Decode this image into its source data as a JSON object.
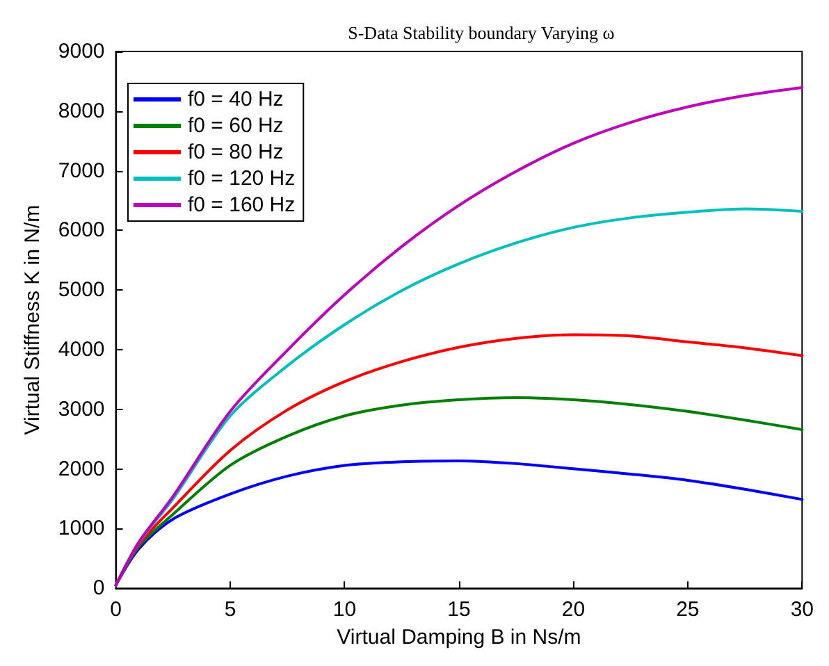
{
  "chart_data": {
    "type": "line",
    "title": "S-Data Stability boundary Varying ω",
    "xlabel": "Virtual Damping B in Ns/m",
    "ylabel": "Virtual Stiffness K in N/m",
    "x": [
      0,
      1,
      2.5,
      5,
      7.5,
      10,
      12.5,
      15,
      17.5,
      20,
      22.5,
      25,
      27.5,
      30
    ],
    "series": [
      {
        "name": "f0 = 40 Hz",
        "color": "#0000ff",
        "values": [
          50,
          660,
          1160,
          1580,
          1880,
          2060,
          2120,
          2135,
          2090,
          2005,
          1915,
          1810,
          1660,
          1490
        ]
      },
      {
        "name": "f0 = 60 Hz",
        "color": "#008000",
        "values": [
          50,
          700,
          1240,
          2060,
          2550,
          2890,
          3070,
          3160,
          3195,
          3160,
          3080,
          2965,
          2820,
          2660
        ]
      },
      {
        "name": "f0 = 80 Hz",
        "color": "#ff0000",
        "values": [
          50,
          730,
          1350,
          2310,
          2990,
          3465,
          3800,
          4040,
          4190,
          4250,
          4230,
          4130,
          4030,
          3900
        ]
      },
      {
        "name": "f0 = 120 Hz",
        "color": "#00bfbf",
        "values": [
          50,
          760,
          1500,
          2890,
          3730,
          4420,
          4990,
          5440,
          5790,
          6050,
          6210,
          6305,
          6360,
          6320
        ]
      },
      {
        "name": "f0 = 160 Hz",
        "color": "#bf00bf",
        "values": [
          50,
          770,
          1540,
          2965,
          3990,
          4920,
          5730,
          6420,
          6990,
          7460,
          7810,
          8070,
          8260,
          8395
        ]
      }
    ],
    "xlim": [
      0,
      30
    ],
    "xticks": [
      0,
      5,
      10,
      15,
      20,
      25,
      30
    ],
    "ylim": [
      0,
      9000
    ],
    "yticks": [
      0,
      1000,
      2000,
      3000,
      4000,
      5000,
      6000,
      7000,
      8000,
      9000
    ],
    "grid": false,
    "legend": "top left",
    "marker": "none",
    "line_style": "solid"
  }
}
